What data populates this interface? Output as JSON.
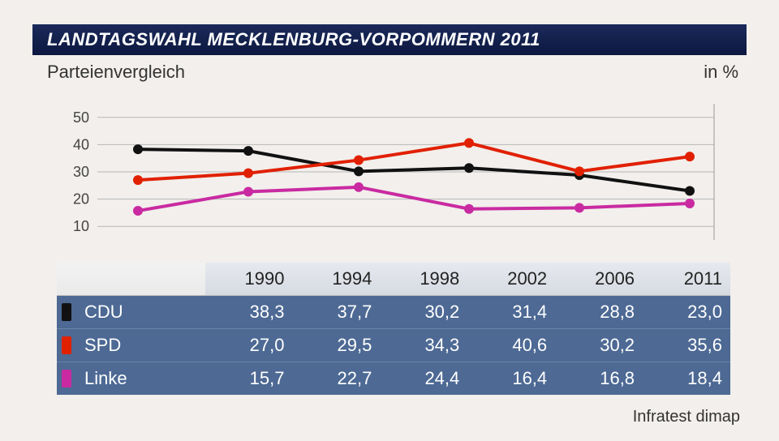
{
  "title": "LANDTAGSWAHL MECKLENBURG-VORPOMMERN 2011",
  "subtitle": "Parteienvergleich",
  "unit_label": "in %",
  "source": "Infratest dimap",
  "chart": {
    "type": "line",
    "background_color": "#f2efec",
    "grid_color": "#b7b7b7",
    "frame_color": "#999999",
    "axis_text_color": "#444444",
    "axis_fontsize": 18,
    "ylim": [
      5,
      55
    ],
    "ytick_positions": [
      10,
      20,
      30,
      40,
      50
    ],
    "ytick_labels": [
      "10",
      "20",
      "30",
      "40",
      "50"
    ],
    "x_categories": [
      "1990",
      "1994",
      "1998",
      "2002",
      "2006",
      "2011"
    ],
    "line_width": 4,
    "marker_radius": 6,
    "marker_style": "circle",
    "series": [
      {
        "name": "CDU",
        "color": "#111111",
        "values": [
          38.3,
          37.7,
          30.2,
          31.4,
          28.8,
          23.0
        ]
      },
      {
        "name": "SPD",
        "color": "#e12000",
        "values": [
          27.0,
          29.5,
          34.3,
          40.6,
          30.2,
          35.6
        ]
      },
      {
        "name": "Linke",
        "color": "#c92aa1",
        "values": [
          15.7,
          22.7,
          24.4,
          16.4,
          16.8,
          18.4
        ]
      }
    ]
  },
  "table": {
    "columns": [
      "",
      "1990",
      "1994",
      "1998",
      "2002",
      "2006",
      "2011"
    ],
    "rows": [
      {
        "label": "CDU",
        "color": "#111111",
        "values": [
          "38,3",
          "37,7",
          "30,2",
          "31,4",
          "28,8",
          "23,0"
        ]
      },
      {
        "label": "SPD",
        "color": "#e12000",
        "values": [
          "27,0",
          "29,5",
          "34,3",
          "40,6",
          "30,2",
          "35,6"
        ]
      },
      {
        "label": "Linke",
        "color": "#c92aa1",
        "values": [
          "15,7",
          "22,7",
          "24,4",
          "16,4",
          "16,8",
          "18,4"
        ]
      }
    ],
    "header_bg": "#dde1e8",
    "body_bg": "#4d6994",
    "body_text_color": "#ffffff",
    "col_widths": [
      "22%",
      "13%",
      "13%",
      "13%",
      "13%",
      "13%",
      "13%"
    ]
  }
}
